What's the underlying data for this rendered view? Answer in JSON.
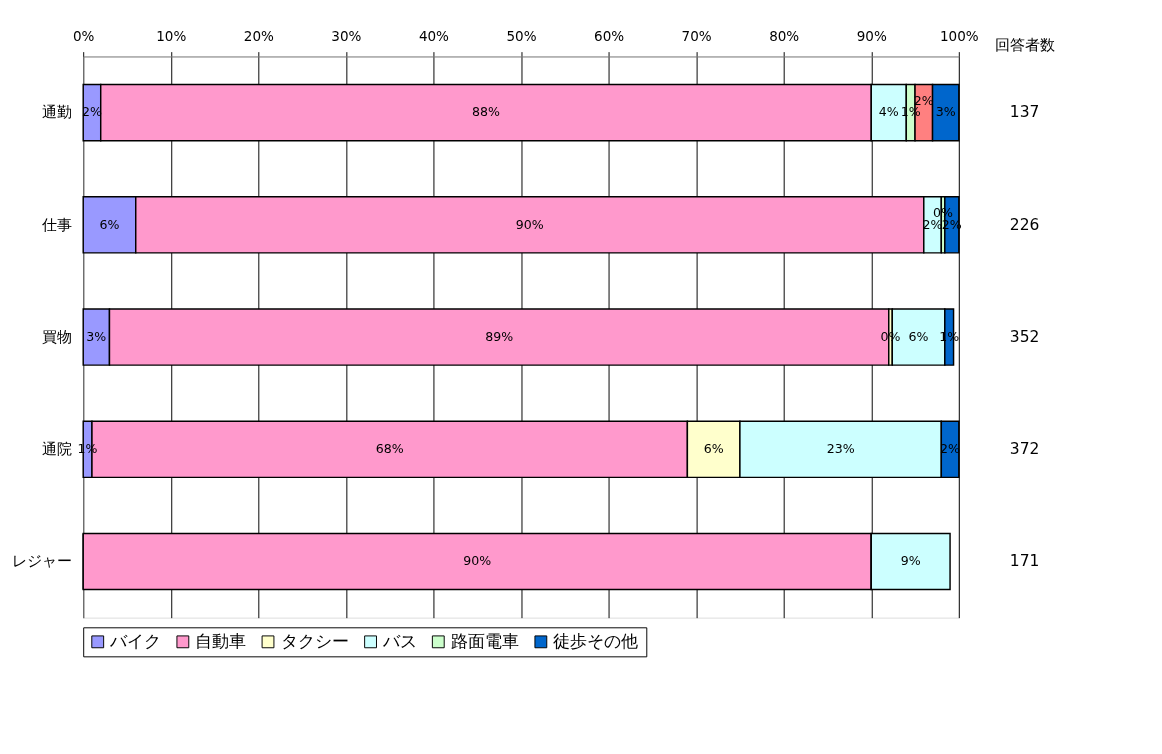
{
  "chart_data": {
    "type": "bar",
    "orientation": "horizontal",
    "stacked": true,
    "categories": [
      "通勤",
      "仕事",
      "買物",
      "通院",
      "レジャー"
    ],
    "series": [
      {
        "name": "バイク",
        "color": "#9999ff",
        "values": [
          2,
          6,
          3,
          1,
          0
        ],
        "value_labels": [
          "2%",
          "6%",
          "3%",
          "1%",
          null
        ]
      },
      {
        "name": "自動車",
        "color": "#ff99cc",
        "values": [
          88,
          90,
          89,
          68,
          90
        ],
        "value_labels": [
          "88%",
          "90%",
          "89%",
          "68%",
          "90%"
        ]
      },
      {
        "name": "タクシー",
        "color": "#ffffcc",
        "values": [
          null,
          null,
          0.4,
          6,
          0
        ],
        "value_labels": [
          null,
          null,
          "0%",
          "6%",
          null
        ]
      },
      {
        "name": "バス",
        "color": "#ccffff",
        "values": [
          4,
          2,
          6,
          23,
          9
        ],
        "value_labels": [
          "4%",
          "2%",
          "6%",
          "23%",
          "9%"
        ]
      },
      {
        "name": "路面電車",
        "color": "#ccffcc",
        "values": [
          1,
          0.4,
          null,
          null,
          null
        ],
        "value_labels": [
          "1%",
          "0%",
          null,
          null,
          null
        ]
      },
      {
        "color": "#ff8080",
        "values": [
          2,
          null,
          null,
          null,
          null
        ],
        "value_labels": [
          "2%",
          null,
          null,
          null,
          null
        ]
      },
      {
        "name": "徒歩その他",
        "color": "#0066cc",
        "values": [
          3,
          1.6,
          1,
          2,
          null
        ],
        "value_labels": [
          "3%",
          "2%",
          "1%",
          "2%",
          null
        ]
      }
    ],
    "xlim": [
      0,
      100
    ],
    "xticks": [
      {
        "value": 0,
        "label": "0%"
      },
      {
        "value": 10,
        "label": "10%"
      },
      {
        "value": 20,
        "label": "20%"
      },
      {
        "value": 30,
        "label": "30%"
      },
      {
        "value": 40,
        "label": "40%"
      },
      {
        "value": 50,
        "label": "50%"
      },
      {
        "value": 60,
        "label": "60%"
      },
      {
        "value": 70,
        "label": "70%"
      },
      {
        "value": 80,
        "label": "80%"
      },
      {
        "value": 90,
        "label": "90%"
      },
      {
        "value": 100,
        "label": "100%"
      }
    ],
    "grid": "x",
    "legend": "bottom",
    "annotations": [
      "回答者数",
      "137",
      "226",
      "352",
      "372",
      "171"
    ]
  }
}
